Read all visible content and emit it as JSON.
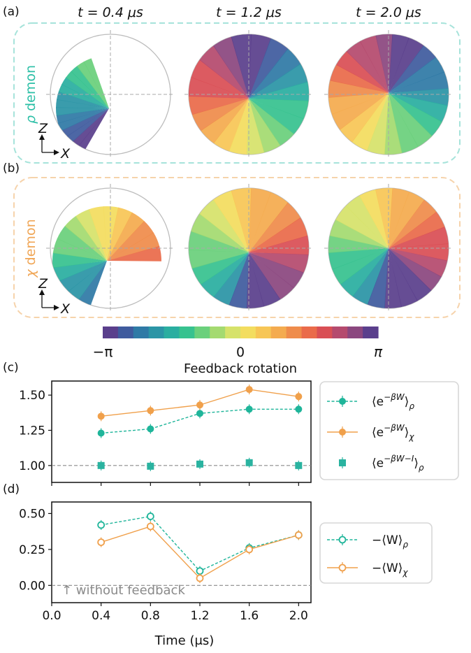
{
  "panels": {
    "a": {
      "letter": "(a)",
      "label_var": "ρ",
      "label_word": " demon",
      "color": "#2bbfa6"
    },
    "b": {
      "letter": "(b)",
      "label_var": "χ",
      "label_word": " demon",
      "color": "#f0a656"
    },
    "c": {
      "letter": "(c)"
    },
    "d": {
      "letter": "(d)"
    }
  },
  "column_titles": [
    "t = 0.4 μs",
    "t = 1.2 μs",
    "t = 2.0 μs"
  ],
  "bloch_axes": {
    "z": "Z",
    "x": "X"
  },
  "colorbar": {
    "ticks": [
      "−π",
      "0",
      "π"
    ],
    "label": "Feedback rotation",
    "colors": [
      "#5a3f8c",
      "#3f5b9e",
      "#2f7aa6",
      "#2b95a6",
      "#2aaea0",
      "#37c28f",
      "#6bd07c",
      "#a4da70",
      "#d6e26a",
      "#f3dd5f",
      "#f7c656",
      "#f4ab4f",
      "#ef8c4b",
      "#ea6b4a",
      "#d94f55",
      "#b54a6e",
      "#8b477f",
      "#5a3f8c"
    ]
  },
  "chart_data": [
    {
      "type": "line",
      "panel": "c",
      "x": [
        0.4,
        0.8,
        1.2,
        1.6,
        2.0
      ],
      "xlim": [
        0.0,
        2.1
      ],
      "ylim": [
        0.88,
        1.6
      ],
      "yticks": [
        "1.00",
        "1.25",
        "1.50"
      ],
      "ytick_values": [
        1.0,
        1.25,
        1.5
      ],
      "reference_line": 1.0,
      "series": [
        {
          "name": "⟨e^{−βW}⟩_ρ",
          "values": [
            1.23,
            1.26,
            1.37,
            1.4,
            1.4
          ],
          "color": "#1fb59a",
          "style": "dashed",
          "marker": "circle"
        },
        {
          "name": "⟨e^{−βW}⟩_χ",
          "values": [
            1.35,
            1.39,
            1.43,
            1.54,
            1.49
          ],
          "color": "#f0a04b",
          "style": "solid",
          "marker": "circle"
        },
        {
          "name": "⟨e^{−βW−I}⟩_ρ",
          "values": [
            1.0,
            0.995,
            1.01,
            1.02,
            1.0
          ],
          "color": "#2ab3a0",
          "style": "none",
          "marker": "square"
        }
      ]
    },
    {
      "type": "line",
      "panel": "d",
      "x": [
        0.4,
        0.8,
        1.2,
        1.6,
        2.0
      ],
      "xlim": [
        0.0,
        2.1
      ],
      "ylim": [
        -0.12,
        0.58
      ],
      "xticks": [
        "0.0",
        "0.4",
        "0.8",
        "1.2",
        "1.6",
        "2.0"
      ],
      "xtick_values": [
        0.0,
        0.4,
        0.8,
        1.2,
        1.6,
        2.0
      ],
      "yticks": [
        "0.00",
        "0.25",
        "0.50"
      ],
      "ytick_values": [
        0.0,
        0.25,
        0.5
      ],
      "xlabel": "Time (μs)",
      "reference_line": 0.0,
      "annotation": "↑ without feedback",
      "series": [
        {
          "name": "−⟨W⟩_ρ",
          "values": [
            0.42,
            0.48,
            0.1,
            0.26,
            0.35
          ],
          "color": "#1fb59a",
          "style": "dashed",
          "marker": "open-circle"
        },
        {
          "name": "−⟨W⟩_χ",
          "values": [
            0.3,
            0.41,
            0.05,
            0.25,
            0.35
          ],
          "color": "#f0a04b",
          "style": "solid",
          "marker": "open-circle"
        }
      ]
    }
  ]
}
